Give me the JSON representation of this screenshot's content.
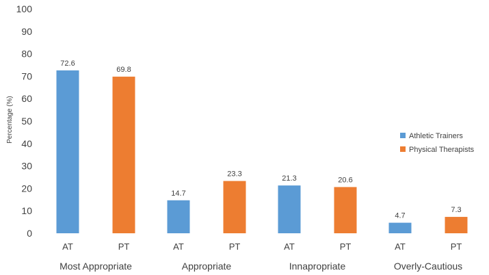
{
  "chart_data": {
    "type": "bar",
    "ylabel": "Percentage (%)",
    "ylim": [
      0,
      100
    ],
    "yticks": [
      0,
      10,
      20,
      30,
      40,
      50,
      60,
      70,
      80,
      90,
      100
    ],
    "grid": false,
    "legend_position": "right",
    "groups": [
      "Most Appropriate",
      "Appropriate",
      "Innapropriate",
      "Overly-Cautious"
    ],
    "subcategories": [
      "AT",
      "PT",
      "AT",
      "PT",
      "AT",
      "PT",
      "AT",
      "PT"
    ],
    "series": [
      {
        "name": "Athletic Trainers",
        "color": "#5b9bd5",
        "values": [
          72.6,
          14.7,
          21.3,
          4.7
        ]
      },
      {
        "name": "Physical Therapists",
        "color": "#ed7d31",
        "values": [
          69.8,
          23.3,
          20.6,
          7.3
        ]
      }
    ]
  }
}
